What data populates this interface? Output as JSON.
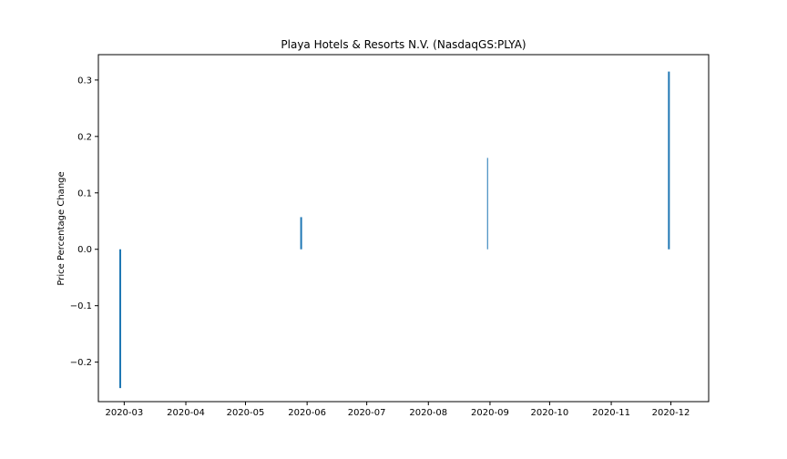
{
  "chart_data": {
    "type": "bar",
    "title": "Playa Hotels & Resorts N.V. (NasdaqGS:PLYA)",
    "xlabel": "",
    "ylabel": "Price Percentage Change",
    "x_ticks": [
      "2020-03",
      "2020-04",
      "2020-05",
      "2020-06",
      "2020-07",
      "2020-08",
      "2020-09",
      "2020-10",
      "2020-11",
      "2020-12"
    ],
    "y_ticks": [
      "−0.2",
      "−0.1",
      "0.0",
      "0.1",
      "0.2",
      "0.3"
    ],
    "y_tick_values": [
      -0.2,
      -0.1,
      0.0,
      0.1,
      0.2,
      0.3
    ],
    "xlim": [
      "2020-02-17",
      "2020-12-20"
    ],
    "ylim": [
      -0.27,
      0.345
    ],
    "grid": false,
    "bar_color": "#1f77b4",
    "points": [
      {
        "x": "2020-02-28",
        "y": -0.246
      },
      {
        "x": "2020-05-29",
        "y": 0.057
      },
      {
        "x": "2020-08-31",
        "y": 0.162
      },
      {
        "x": "2020-11-30",
        "y": 0.315
      }
    ]
  }
}
